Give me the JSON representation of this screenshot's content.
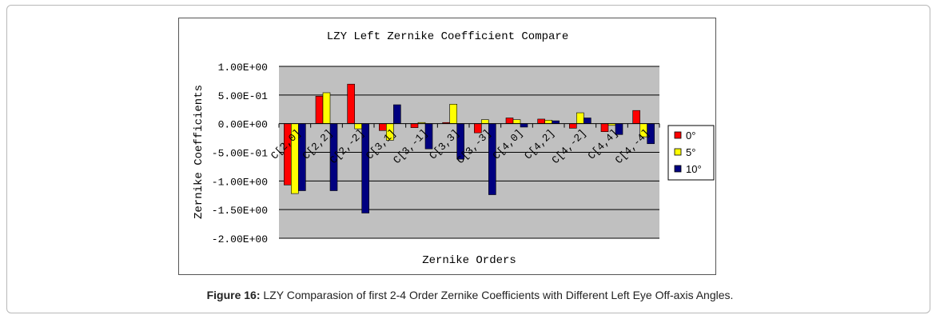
{
  "caption": {
    "label": "Figure 16:",
    "text": " LZY Comparasion of first 2-4 Order Zernike Coefficients with Different Left Eye Off-axis Angles."
  },
  "colors": {
    "plot_bg": "#c0c0c0",
    "series": [
      "#ff0000",
      "#ffff00",
      "#000080"
    ]
  },
  "chart_data": {
    "type": "bar",
    "title": "LZY Left Zernike Coefficient Compare",
    "xlabel": "Zernike Orders",
    "ylabel": "Zernike Coefficients",
    "ylim": [
      -2.0,
      1.0
    ],
    "yticks": [
      1.0,
      0.5,
      0.0,
      -0.5,
      -1.0,
      -1.5,
      -2.0
    ],
    "ytick_labels": [
      "1.00E+00",
      "5.00E-01",
      "0.00E+00",
      "-5.00E-01",
      "-1.00E+00",
      "-1.50E+00",
      "-2.00E+00"
    ],
    "grid": true,
    "legend_position": "right",
    "categories": [
      "C[2,0]",
      "C[2,2]",
      "C[2,-2]",
      "C[3,1]",
      "C[3,-1]",
      "C[3,3]",
      "C[3,-3]",
      "C[4,0]",
      "C[4,2]",
      "C[4,-2]",
      "C[4,4]",
      "C[4,-4]"
    ],
    "series": [
      {
        "name": "0°",
        "values": [
          -1.07,
          0.48,
          0.69,
          -0.12,
          -0.07,
          0.02,
          -0.16,
          0.1,
          0.08,
          -0.08,
          -0.14,
          0.23
        ]
      },
      {
        "name": "5°",
        "values": [
          -1.22,
          0.54,
          -0.09,
          -0.29,
          0.02,
          0.34,
          0.07,
          0.07,
          0.06,
          0.19,
          -0.03,
          -0.23
        ]
      },
      {
        "name": "10°",
        "values": [
          -1.17,
          -1.17,
          -1.56,
          0.33,
          -0.44,
          -0.62,
          -1.24,
          -0.06,
          0.05,
          0.1,
          -0.19,
          -0.35
        ]
      }
    ]
  }
}
